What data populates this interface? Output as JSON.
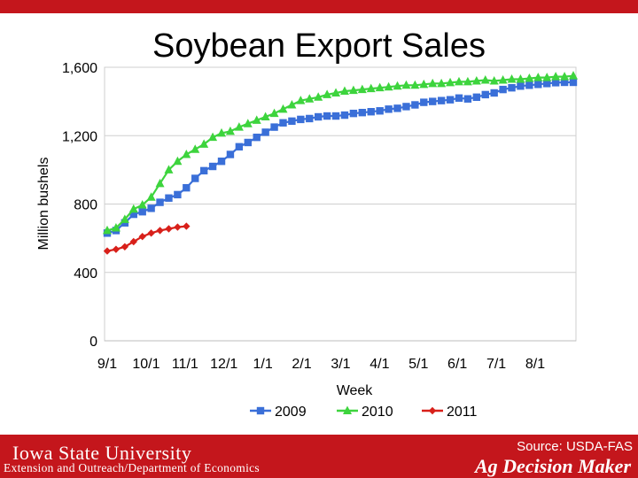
{
  "header": {
    "title": "Soybean Export Sales"
  },
  "footer": {
    "university_logo": "Iowa State University",
    "department": "Extension and Outreach/Department of Economics",
    "source": "Source: USDA-FAS",
    "brand": "Ag Decision Maker"
  },
  "chart_data": {
    "type": "line",
    "title": "Soybean Export Sales",
    "xlabel": "Week",
    "ylabel": "Million bushels",
    "ylim": [
      0,
      1600
    ],
    "yticks": [
      0,
      400,
      800,
      1200,
      1600
    ],
    "ytick_labels": [
      "0",
      "400",
      "800",
      "1,200",
      "1,600"
    ],
    "xtick_labels": [
      "9/1",
      "10/1",
      "11/1",
      "12/1",
      "1/1",
      "2/1",
      "3/1",
      "4/1",
      "5/1",
      "6/1",
      "7/1",
      "8/1"
    ],
    "x_unit": "week index (0 = first week of September)",
    "grid": true,
    "legend_position": "bottom",
    "series": [
      {
        "name": "2009",
        "color": "#3a6fd8",
        "marker": "square",
        "values": [
          630,
          645,
          690,
          740,
          755,
          775,
          810,
          835,
          855,
          895,
          950,
          995,
          1020,
          1050,
          1090,
          1135,
          1160,
          1190,
          1220,
          1250,
          1275,
          1285,
          1295,
          1300,
          1310,
          1315,
          1315,
          1320,
          1330,
          1335,
          1340,
          1345,
          1355,
          1360,
          1370,
          1380,
          1395,
          1400,
          1405,
          1410,
          1420,
          1415,
          1425,
          1440,
          1450,
          1470,
          1480,
          1490,
          1495,
          1500,
          1505,
          1510,
          1512,
          1512
        ]
      },
      {
        "name": "2010",
        "color": "#3dd43d",
        "marker": "triangle",
        "values": [
          645,
          660,
          710,
          770,
          795,
          840,
          920,
          1000,
          1050,
          1090,
          1120,
          1150,
          1190,
          1215,
          1225,
          1250,
          1270,
          1290,
          1310,
          1330,
          1355,
          1380,
          1405,
          1415,
          1425,
          1440,
          1450,
          1460,
          1465,
          1470,
          1475,
          1480,
          1485,
          1490,
          1495,
          1495,
          1500,
          1505,
          1505,
          1510,
          1515,
          1515,
          1520,
          1525,
          1520,
          1525,
          1530,
          1530,
          1535,
          1540,
          1540,
          1545,
          1545,
          1550
        ]
      },
      {
        "name": "2011",
        "color": "#d8201a",
        "marker": "diamond",
        "values": [
          525,
          535,
          550,
          580,
          610,
          630,
          645,
          655,
          665,
          670
        ]
      }
    ]
  }
}
